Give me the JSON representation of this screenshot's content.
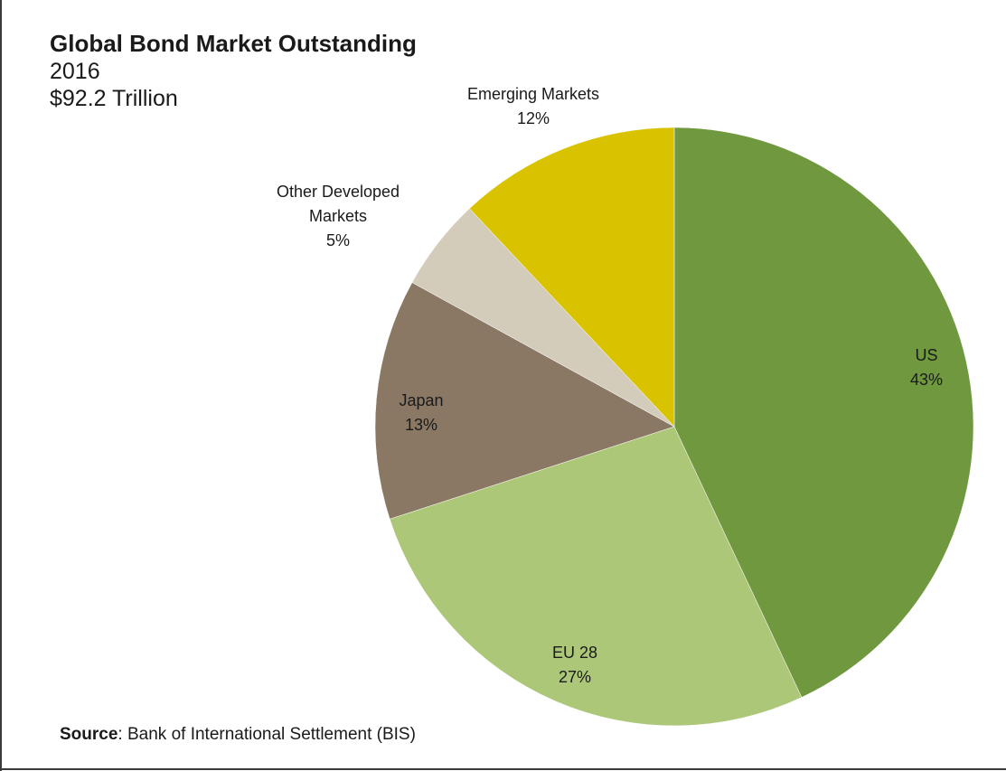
{
  "chart_data": {
    "type": "pie",
    "title": "Global Bond Market Outstanding",
    "subtitle_lines": [
      "2016",
      "$92.2 Trillion"
    ],
    "slices": [
      {
        "name": "US",
        "label_lines": [
          "US"
        ],
        "value": 43,
        "value_label": "43%",
        "color": "#6f983f"
      },
      {
        "name": "EU 28",
        "label_lines": [
          "EU 28"
        ],
        "value": 27,
        "value_label": "27%",
        "color": "#adc778"
      },
      {
        "name": "Japan",
        "label_lines": [
          "Japan"
        ],
        "value": 13,
        "value_label": "13%",
        "color": "#8a7865"
      },
      {
        "name": "Other Developed Markets",
        "label_lines": [
          "Other Developed",
          "Markets"
        ],
        "value": 5,
        "value_label": "5%",
        "color": "#d4ccba"
      },
      {
        "name": "Emerging Markets",
        "label_lines": [
          "Emerging Markets"
        ],
        "value": 12,
        "value_label": "12%",
        "color": "#d9c300"
      }
    ],
    "start_angle_deg": 0,
    "direction": "clockwise",
    "legend": "none"
  },
  "source": {
    "label": "Source",
    "text": ": Bank of International Settlement (BIS)"
  }
}
